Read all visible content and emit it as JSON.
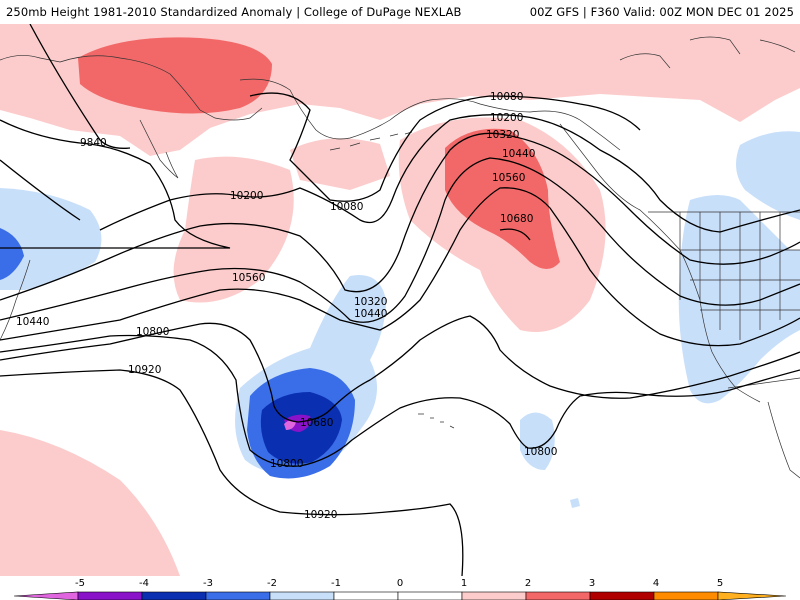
{
  "header": {
    "title_left": "250mb Height 1981-2010 Standardized Anomaly | College of DuPage NEXLAB",
    "title_right": "00Z GFS | F360 Valid: 00Z MON DEC 01 2025"
  },
  "contour_labels": {
    "c9840": "9840",
    "c10080a": "10080",
    "c10080b": "10080",
    "c10200a": "10200",
    "c10200b": "10200",
    "c10320a": "10320",
    "c10320b": "10320",
    "c10440a": "10440",
    "c10440b": "10440",
    "c10440c": "10440",
    "c10560a": "10560",
    "c10560b": "10560",
    "c10680a": "10680",
    "c10680b": "10680",
    "c10800a": "10800",
    "c10800b": "10800",
    "c10800c": "10800",
    "c10920a": "10920",
    "c10920b": "10920"
  },
  "colorbar": {
    "ticks": [
      "-5",
      "-4",
      "-3",
      "-2",
      "-1",
      "0",
      "1",
      "2",
      "3",
      "4",
      "5"
    ],
    "colors": {
      "m5": "#e066e0",
      "m4": "#8a12c8",
      "m3": "#0a2fb0",
      "m2": "#3a6de8",
      "m1": "#c8dffa",
      "zero": "#ffffff",
      "p1": "#fccccc",
      "p2": "#f26868",
      "p3": "#b00000",
      "p4": "#ff8c00",
      "p5": "#ffb020"
    }
  }
}
